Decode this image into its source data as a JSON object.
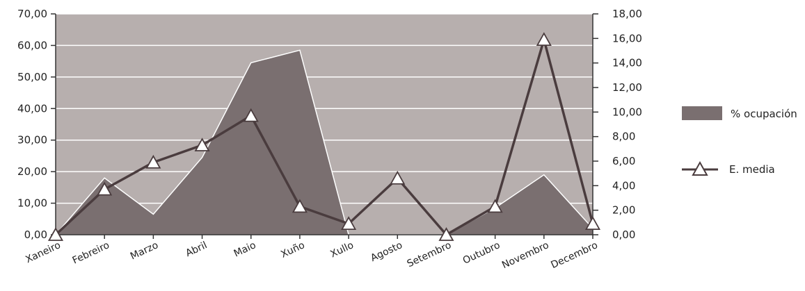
{
  "chart_data": {
    "type": "area+line",
    "categories": [
      "Xaneiro",
      "Febreiro",
      "Marzo",
      "Abril",
      "Maio",
      "Xuño",
      "Xullo",
      "Agosto",
      "Setembro",
      "Outubro",
      "Novembro",
      "Decembro"
    ],
    "ylim_left": [
      0,
      70
    ],
    "ylim_right": [
      0,
      18
    ],
    "yticks_left": [
      "0,00",
      "10,00",
      "20,00",
      "30,00",
      "40,00",
      "50,00",
      "60,00",
      "70,00"
    ],
    "yticks_right": [
      "0,00",
      "2,00",
      "4,00",
      "6,00",
      "8,00",
      "10,00",
      "12,00",
      "14,00",
      "16,00",
      "18,00"
    ],
    "grid": true,
    "legend_position": "right",
    "series": [
      {
        "name": "% ocupación",
        "type": "area",
        "axis": "left",
        "values": [
          0,
          18,
          6.5,
          24.5,
          54.5,
          58.5,
          0,
          0,
          0,
          8.5,
          19,
          2
        ]
      },
      {
        "name": "E. media",
        "type": "line",
        "axis": "right",
        "marker": "triangle",
        "values": [
          0,
          3.7,
          5.9,
          7.3,
          9.7,
          2.3,
          0.9,
          4.6,
          0,
          2.3,
          15.9,
          0.9
        ]
      }
    ],
    "colors": {
      "plot_bg": "#b7afae",
      "area": "#7a6f70",
      "line": "#4a3c3e",
      "grid": "#ffffff"
    }
  }
}
